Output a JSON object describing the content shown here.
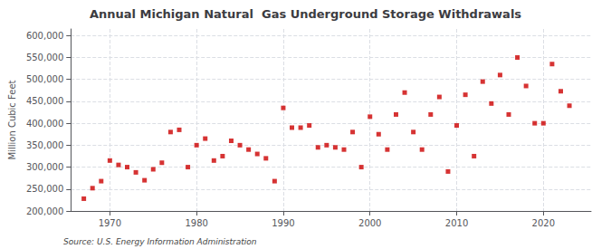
{
  "chart_data": {
    "type": "scatter",
    "title": "Annual Michigan Natural  Gas Underground Storage Withdrawals",
    "ylabel": "Million Cubic Feet",
    "annotations": [
      "Source: U.S. Energy Information Administration"
    ],
    "color": "#cc0000",
    "marker": "square",
    "grid": true,
    "xlim": [
      1965.5,
      2025.5
    ],
    "xticks": [
      1970,
      1980,
      1990,
      2000,
      2010,
      2020
    ],
    "ylim": [
      200000,
      615000
    ],
    "yticks": [
      {
        "value": 200000,
        "label": "200,000"
      },
      {
        "value": 250000,
        "label": "250,000"
      },
      {
        "value": 300000,
        "label": "300,000"
      },
      {
        "value": 350000,
        "label": "350,000"
      },
      {
        "value": 400000,
        "label": "400,000"
      },
      {
        "value": 450000,
        "label": "450,000"
      },
      {
        "value": 500000,
        "label": "500,000"
      },
      {
        "value": 550000,
        "label": "550,000"
      },
      {
        "value": 600000,
        "label": "600,000"
      }
    ],
    "x": [
      1967,
      1968,
      1969,
      1970,
      1971,
      1972,
      1973,
      1974,
      1975,
      1976,
      1977,
      1978,
      1979,
      1980,
      1981,
      1982,
      1983,
      1984,
      1985,
      1986,
      1987,
      1988,
      1989,
      1990,
      1991,
      1992,
      1993,
      1994,
      1995,
      1996,
      1997,
      1998,
      1999,
      2000,
      2001,
      2002,
      2003,
      2004,
      2005,
      2006,
      2007,
      2008,
      2009,
      2010,
      2011,
      2012,
      2013,
      2014,
      2015,
      2016,
      2017,
      2018,
      2019,
      2020,
      2021,
      2022,
      2023
    ],
    "values": [
      228000,
      252000,
      268000,
      315000,
      305000,
      300000,
      288000,
      270000,
      295000,
      310000,
      380000,
      385000,
      300000,
      350000,
      365000,
      315000,
      325000,
      360000,
      350000,
      340000,
      330000,
      320000,
      268000,
      435000,
      390000,
      390000,
      395000,
      345000,
      350000,
      345000,
      340000,
      380000,
      300000,
      415000,
      375000,
      340000,
      420000,
      470000,
      380000,
      340000,
      420000,
      460000,
      290000,
      395000,
      465000,
      325000,
      495000,
      445000,
      510000,
      420000,
      550000,
      485000,
      400000,
      400000,
      535000,
      473000,
      440000
    ]
  }
}
